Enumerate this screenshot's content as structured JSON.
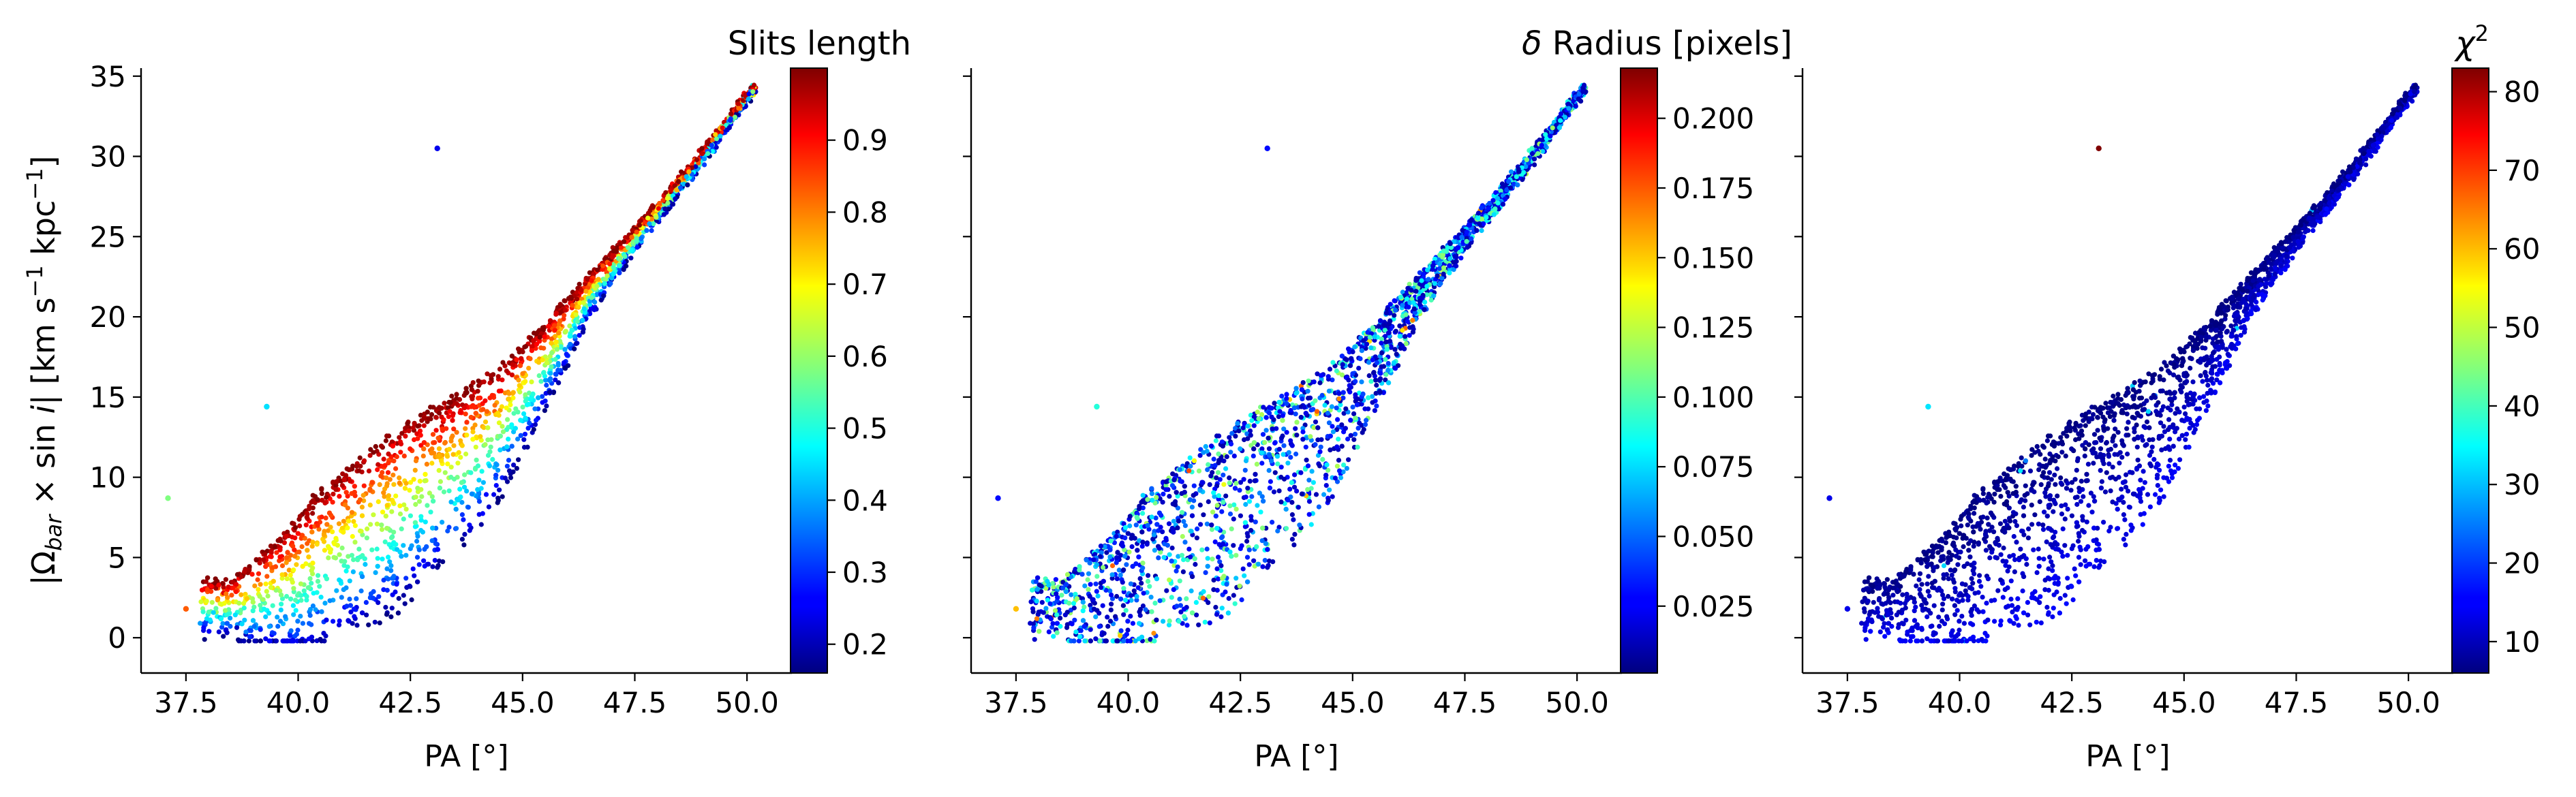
{
  "chart_data": [
    {
      "type": "scatter",
      "xlabel": "PA [°]",
      "ylabel": "|Ω_bar × sin i|   [km s⁻¹ kpc⁻¹]",
      "ylabel_parts": {
        "open": "|Ω",
        "sub": "bar",
        "mid": " × sin ",
        "i": "i",
        "close": "|   [km s",
        "exp1": "−1",
        "kpc": " kpc",
        "exp2": "−1",
        "end": "]"
      },
      "xlim": [
        36.5,
        51.0
      ],
      "ylim": [
        -2.2,
        35.5
      ],
      "xticks": [
        "37.5",
        "40.0",
        "42.5",
        "45.0",
        "47.5",
        "50.0"
      ],
      "xtick_values": [
        37.5,
        40.0,
        42.5,
        45.0,
        47.5,
        50.0
      ],
      "yticks": [
        "0",
        "5",
        "10",
        "15",
        "20",
        "25",
        "30",
        "35"
      ],
      "ytick_values": [
        0,
        5,
        10,
        15,
        20,
        25,
        30,
        35
      ],
      "colorbar": {
        "label": "Slits length",
        "colormap": "jet",
        "range": [
          0.16,
          1.0
        ],
        "ticks": [
          "0.2",
          "0.3",
          "0.4",
          "0.5",
          "0.6",
          "0.7",
          "0.8",
          "0.9"
        ],
        "tick_values": [
          0.2,
          0.3,
          0.4,
          0.5,
          0.6,
          0.7,
          0.8,
          0.9
        ]
      },
      "color_mode": "slit_length",
      "outliers": [
        {
          "x": 43.1,
          "y": 30.5,
          "c": 0.25
        },
        {
          "x": 39.3,
          "y": 14.4,
          "c": 0.45
        },
        {
          "x": 37.1,
          "y": 8.7,
          "c": 0.58
        },
        {
          "x": 37.5,
          "y": 1.8,
          "c": 0.82
        }
      ]
    },
    {
      "type": "scatter",
      "xlabel": "PA [°]",
      "xlim": [
        36.5,
        51.0
      ],
      "ylim": [
        -2.2,
        35.5
      ],
      "xticks": [
        "37.5",
        "40.0",
        "42.5",
        "45.0",
        "47.5",
        "50.0"
      ],
      "xtick_values": [
        37.5,
        40.0,
        42.5,
        45.0,
        47.5,
        50.0
      ],
      "ytick_values": [
        0,
        5,
        10,
        15,
        20,
        25,
        30,
        35
      ],
      "colorbar": {
        "label": "δ Radius [pixels]",
        "label_parts": {
          "delta": "δ",
          "rest": " Radius [pixels]"
        },
        "colormap": "jet",
        "range": [
          0.001,
          0.218
        ],
        "ticks": [
          "0.025",
          "0.050",
          "0.075",
          "0.100",
          "0.125",
          "0.150",
          "0.175",
          "0.200"
        ],
        "tick_values": [
          0.025,
          0.05,
          0.075,
          0.1,
          0.125,
          0.15,
          0.175,
          0.2
        ]
      },
      "color_mode": "delta_radius",
      "outliers": [
        {
          "x": 43.1,
          "y": 30.5,
          "c": 0.03
        },
        {
          "x": 39.3,
          "y": 14.4,
          "c": 0.09
        },
        {
          "x": 37.1,
          "y": 8.7,
          "c": 0.03
        },
        {
          "x": 37.5,
          "y": 1.8,
          "c": 0.15
        }
      ]
    },
    {
      "type": "scatter",
      "xlabel": "PA [°]",
      "xlim": [
        36.5,
        51.0
      ],
      "ylim": [
        -2.2,
        35.5
      ],
      "xticks": [
        "37.5",
        "40.0",
        "42.5",
        "45.0",
        "47.5",
        "50.0"
      ],
      "xtick_values": [
        37.5,
        40.0,
        42.5,
        45.0,
        47.5,
        50.0
      ],
      "ytick_values": [
        0,
        5,
        10,
        15,
        20,
        25,
        30,
        35
      ],
      "colorbar": {
        "label": "χ²",
        "label_parts": {
          "chi": "χ",
          "exp": "2"
        },
        "colormap": "jet",
        "range": [
          6.0,
          83.0
        ],
        "ticks": [
          "10",
          "20",
          "30",
          "40",
          "50",
          "60",
          "70",
          "80"
        ],
        "tick_values": [
          10,
          20,
          30,
          40,
          50,
          60,
          70,
          80
        ]
      },
      "color_mode": "chi2",
      "outliers": [
        {
          "x": 43.1,
          "y": 30.5,
          "c": 83
        },
        {
          "x": 39.3,
          "y": 14.4,
          "c": 33
        },
        {
          "x": 37.1,
          "y": 8.7,
          "c": 14
        },
        {
          "x": 37.5,
          "y": 1.8,
          "c": 14
        }
      ]
    }
  ],
  "cloud": {
    "count": 2600,
    "pa_range": [
      37.8,
      50.2
    ],
    "ridge_points": [
      [
        38.5,
        3.5
      ],
      [
        39.5,
        6.0
      ],
      [
        40.5,
        9.0
      ],
      [
        41.5,
        11.5
      ],
      [
        42.5,
        13.5
      ],
      [
        43.5,
        15.0
      ],
      [
        44.5,
        16.8
      ],
      [
        45.5,
        19.5
      ],
      [
        46.5,
        22.5
      ],
      [
        47.5,
        25.5
      ],
      [
        48.5,
        28.5
      ],
      [
        49.5,
        32.0
      ],
      [
        50.1,
        34.2
      ]
    ],
    "spread_points": [
      [
        38.5,
        3.5
      ],
      [
        40.0,
        9.0
      ],
      [
        42.0,
        11.5
      ],
      [
        44.0,
        9.5
      ],
      [
        45.5,
        5.5
      ],
      [
        46.5,
        2.5
      ],
      [
        48.0,
        1.0
      ],
      [
        50.2,
        0.3
      ]
    ]
  }
}
